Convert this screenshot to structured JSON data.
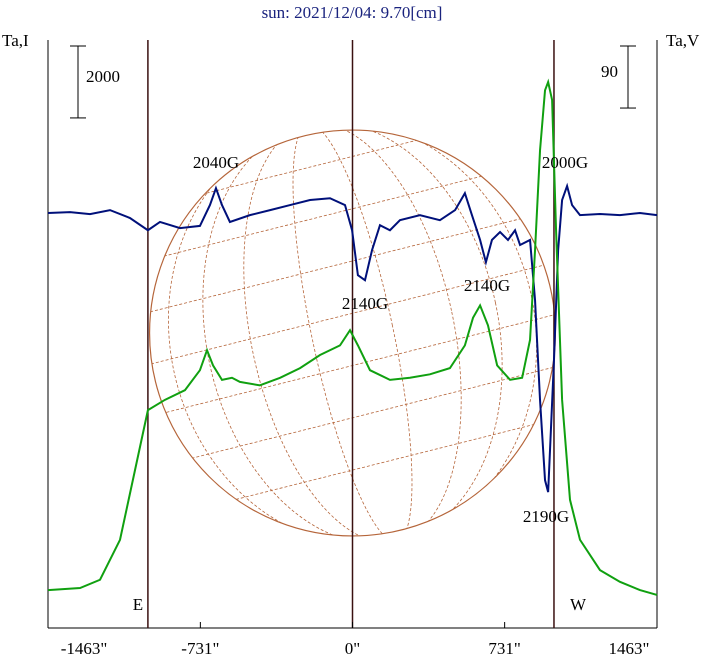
{
  "chart_data": {
    "type": "line",
    "title": "sun: 2021/12/04: 9.70[cm]",
    "ylabel": "Ta,I",
    "y2label": "Ta,V",
    "xlim": [
      -1463,
      1463
    ],
    "xticks": [
      {
        "value": -1463,
        "label": "-1463\""
      },
      {
        "value": -731,
        "label": "-731\""
      },
      {
        "value": 0,
        "label": "0\""
      },
      {
        "value": 731,
        "label": "731\""
      },
      {
        "value": 1463,
        "label": "1463\""
      }
    ],
    "ylim": [
      0,
      16350
    ],
    "y2lim": [
      0,
      853
    ],
    "scale_i": 2000,
    "scale_v": 90,
    "disk_radius": 975,
    "vlines": [
      -983,
      0,
      968
    ],
    "limb_labels": [
      "E",
      "W"
    ],
    "disk_color": "#b5653a",
    "annotations": [
      "2040G",
      "2140G",
      "2140G",
      "2000G",
      "2190G"
    ],
    "series": [
      {
        "name": "I",
        "color": "#00107a",
        "x": [
          -1463,
          -1357,
          -1261,
          -1165,
          -1069,
          -983,
          -925,
          -829,
          -733,
          -685,
          -656,
          -627,
          -589,
          -493,
          -396,
          -300,
          -204,
          -108,
          -36,
          -2,
          26,
          60,
          94,
          132,
          180,
          228,
          324,
          420,
          493,
          540,
          574,
          613,
          641,
          670,
          709,
          747,
          781,
          805,
          853,
          877,
          901,
          925,
          940,
          949,
          968,
          988,
          1007,
          1031,
          1055,
          1093,
          1189,
          1285,
          1381,
          1463
        ],
        "values": [
          11540,
          11565,
          11510,
          11620,
          11400,
          11060,
          11290,
          11120,
          11180,
          11760,
          12230,
          11760,
          11290,
          11480,
          11620,
          11760,
          11900,
          11950,
          11760,
          11060,
          9810,
          9670,
          10510,
          11200,
          11060,
          11340,
          11480,
          11340,
          11620,
          12090,
          11480,
          10790,
          10170,
          10790,
          11010,
          10790,
          11060,
          10650,
          10790,
          9120,
          6340,
          4110,
          3780,
          4950,
          7450,
          10510,
          11900,
          12290,
          11760,
          11480,
          11510,
          11480,
          11540,
          11480
        ]
      },
      {
        "name": "V",
        "color": "#10a010",
        "axis": "y2",
        "x": [
          -1463,
          -1309,
          -1213,
          -1117,
          -1045,
          -983,
          -901,
          -805,
          -733,
          -699,
          -670,
          -627,
          -579,
          -541,
          -445,
          -348,
          -252,
          -156,
          -60,
          -12,
          26,
          84,
          180,
          276,
          372,
          468,
          540,
          579,
          613,
          651,
          695,
          757,
          815,
          853,
          877,
          901,
          925,
          940,
          959,
          978,
          1007,
          1045,
          1093,
          1189,
          1285,
          1381,
          1463
        ],
        "values": [
          55,
          58,
          70,
          128,
          229,
          316,
          331,
          345,
          374,
          403,
          381,
          360,
          363,
          357,
          352,
          363,
          377,
          396,
          410,
          432,
          410,
          374,
          360,
          363,
          368,
          377,
          410,
          450,
          468,
          439,
          381,
          360,
          363,
          418,
          548,
          693,
          780,
          792,
          766,
          577,
          331,
          186,
          128,
          84,
          67,
          55,
          48
        ]
      }
    ]
  }
}
